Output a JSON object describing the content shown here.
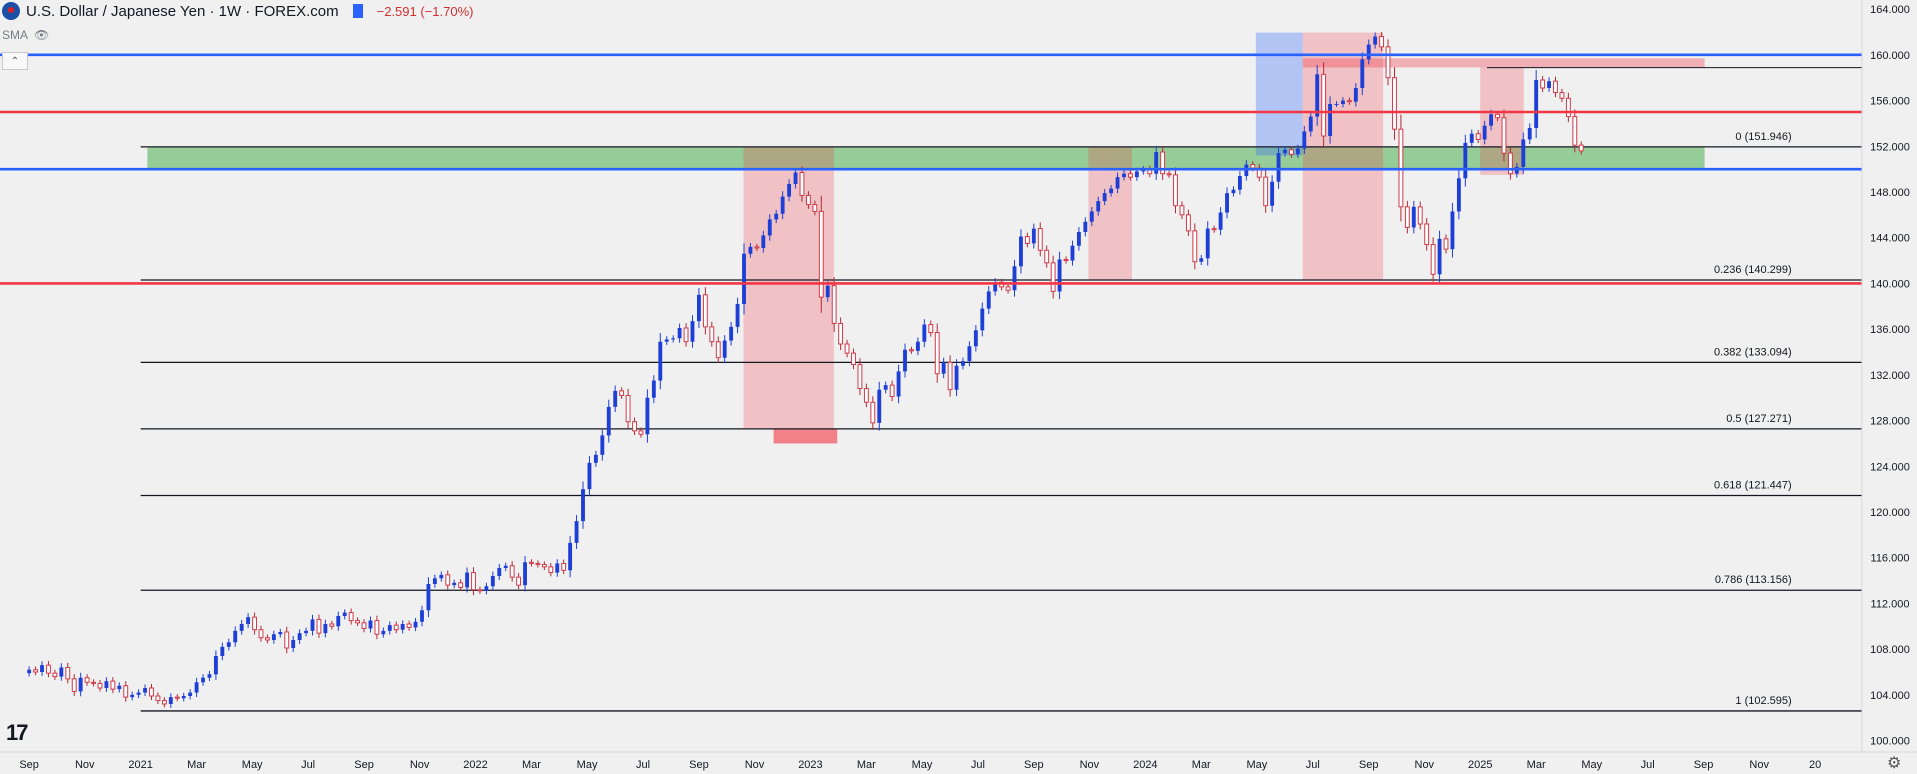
{
  "header": {
    "title": "U.S. Dollar / Japanese Yen · 1W · FOREX.com",
    "change": "−2.591 (−1.70%)",
    "indicator": "SMA"
  },
  "chart_data": {
    "type": "candlestick",
    "title": "U.S. Dollar / Japanese Yen · 1W · FOREX.com",
    "ylim": [
      99.0,
      164.8
    ],
    "y_ticks": [
      100,
      104,
      108,
      112,
      116,
      120,
      124,
      128,
      132,
      136,
      140,
      144,
      148,
      152,
      156,
      160,
      164
    ],
    "x_labels": [
      {
        "label": "Sep",
        "t": 2020.667
      },
      {
        "label": "Nov",
        "t": 2020.833
      },
      {
        "label": "2021",
        "t": 2021.0
      },
      {
        "label": "Mar",
        "t": 2021.167
      },
      {
        "label": "May",
        "t": 2021.333
      },
      {
        "label": "Jul",
        "t": 2021.5
      },
      {
        "label": "Sep",
        "t": 2021.667
      },
      {
        "label": "Nov",
        "t": 2021.833
      },
      {
        "label": "2022",
        "t": 2022.0
      },
      {
        "label": "Mar",
        "t": 2022.167
      },
      {
        "label": "May",
        "t": 2022.333
      },
      {
        "label": "Jul",
        "t": 2022.5
      },
      {
        "label": "Sep",
        "t": 2022.667
      },
      {
        "label": "Nov",
        "t": 2022.833
      },
      {
        "label": "2023",
        "t": 2023.0
      },
      {
        "label": "Mar",
        "t": 2023.167
      },
      {
        "label": "May",
        "t": 2023.333
      },
      {
        "label": "Jul",
        "t": 2023.5
      },
      {
        "label": "Sep",
        "t": 2023.667
      },
      {
        "label": "Nov",
        "t": 2023.833
      },
      {
        "label": "2024",
        "t": 2024.0
      },
      {
        "label": "Mar",
        "t": 2024.167
      },
      {
        "label": "May",
        "t": 2024.333
      },
      {
        "label": "Jul",
        "t": 2024.5
      },
      {
        "label": "Sep",
        "t": 2024.667
      },
      {
        "label": "Nov",
        "t": 2024.833
      },
      {
        "label": "2025",
        "t": 2025.0
      },
      {
        "label": "Mar",
        "t": 2025.167
      },
      {
        "label": "May",
        "t": 2025.333
      },
      {
        "label": "Jul",
        "t": 2025.5
      },
      {
        "label": "Sep",
        "t": 2025.667
      },
      {
        "label": "Nov",
        "t": 2025.833
      },
      {
        "label": "20",
        "t": 2026.0
      }
    ],
    "price_lines": [
      {
        "price": 160.0,
        "label": "160.000",
        "color": "#2962ff"
      },
      {
        "price": 155.0,
        "label": "155.000",
        "color": "#f23645"
      },
      {
        "price": 150.0,
        "label": "150.000",
        "color": "#2962ff"
      },
      {
        "price": 140.0,
        "label": "140.000",
        "color": "#f23645"
      }
    ],
    "last_price": {
      "price": 158.882,
      "label": "158.882",
      "color": "#131722"
    },
    "fib_levels": [
      {
        "price": 151.946,
        "label": "0 (151.946)"
      },
      {
        "price": 140.299,
        "label": "0.236 (140.299)"
      },
      {
        "price": 133.094,
        "label": "0.382 (133.094)"
      },
      {
        "price": 127.271,
        "label": "0.5 (127.271)"
      },
      {
        "price": 121.447,
        "label": "0.618 (121.447)"
      },
      {
        "price": 113.156,
        "label": "0.786 (113.156)"
      },
      {
        "price": 102.595,
        "label": "1 (102.595)"
      }
    ],
    "zones": [
      {
        "type": "support-resistance",
        "t1": 2021.02,
        "t2": 2025.67,
        "p1": 150.0,
        "p2": 151.95,
        "color": "#4caf50"
      },
      {
        "type": "pullback",
        "t1": 2022.8,
        "t2": 2023.07,
        "p1": 127.27,
        "p2": 151.95,
        "color": "#f23645"
      },
      {
        "type": "pullback",
        "t1": 2023.83,
        "t2": 2023.96,
        "p1": 140.3,
        "p2": 151.95,
        "color": "#f23645"
      },
      {
        "type": "pullback",
        "t1": 2024.47,
        "t2": 2024.71,
        "p1": 140.3,
        "p2": 161.95,
        "color": "#f23645"
      },
      {
        "type": "pullback",
        "t1": 2025.0,
        "t2": 2025.13,
        "p1": 149.5,
        "p2": 158.9,
        "color": "#f23645"
      },
      {
        "type": "rally",
        "t1": 2024.33,
        "t2": 2024.47,
        "p1": 151.2,
        "p2": 161.95,
        "color": "#2962ff"
      }
    ],
    "series": [
      {
        "name": "USD/JPY",
        "t_start": 2020.667,
        "step": 0.019231,
        "closes": [
          106.2,
          106.0,
          106.6,
          105.9,
          105.6,
          106.4,
          105.4,
          104.3,
          105.5,
          105.1,
          105.0,
          104.6,
          105.2,
          104.5,
          104.8,
          103.8,
          104.0,
          104.2,
          104.6,
          103.9,
          103.5,
          103.2,
          103.8,
          103.7,
          103.9,
          104.2,
          105.1,
          105.5,
          105.8,
          107.4,
          108.2,
          108.6,
          109.6,
          110.2,
          110.8,
          109.7,
          109.0,
          108.8,
          109.3,
          109.5,
          108.1,
          108.8,
          109.4,
          109.6,
          110.6,
          109.4,
          110.2,
          110.0,
          110.9,
          111.2,
          110.5,
          110.3,
          109.8,
          110.5,
          109.3,
          109.6,
          110.1,
          109.7,
          110.2,
          109.9,
          110.4,
          111.4,
          113.7,
          114.2,
          114.5,
          113.6,
          113.8,
          113.4,
          114.7,
          113.2,
          113.1,
          113.5,
          114.4,
          115.1,
          115.3,
          114.3,
          113.6,
          115.6,
          115.5,
          115.4,
          115.2,
          114.7,
          115.5,
          114.9,
          117.3,
          119.2,
          122.0,
          124.3,
          125.0,
          126.7,
          129.2,
          130.6,
          130.2,
          127.9,
          127.1,
          126.8,
          130.0,
          131.5,
          134.9,
          135.1,
          135.2,
          136.1,
          134.9,
          136.7,
          139.0,
          136.2,
          134.9,
          133.5,
          135.0,
          136.2,
          138.2,
          142.6,
          143.2,
          143.1,
          144.2,
          145.6,
          146.1,
          147.6,
          148.7,
          149.7,
          147.7,
          146.9,
          146.3,
          138.8,
          139.8,
          136.5,
          134.7,
          133.9,
          132.9,
          130.8,
          129.6,
          127.8,
          130.7,
          131.1,
          130.1,
          132.3,
          134.2,
          134.1,
          134.9,
          136.4,
          135.7,
          132.1,
          133.1,
          130.7,
          132.8,
          133.2,
          134.5,
          135.9,
          137.8,
          139.3,
          140.1,
          139.7,
          139.4,
          141.5,
          144.1,
          143.5,
          144.8,
          142.9,
          141.8,
          139.3,
          142.1,
          142.0,
          143.3,
          144.5,
          145.4,
          146.3,
          147.2,
          147.9,
          148.3,
          149.3,
          149.6,
          149.3,
          149.8,
          150.0,
          149.6,
          151.5,
          149.6,
          149.5,
          146.8,
          146.0,
          144.6,
          141.9,
          142.2,
          144.8,
          144.7,
          146.2,
          147.9,
          148.2,
          149.4,
          150.4,
          150.1,
          149.3,
          146.8,
          148.9,
          151.4,
          151.7,
          151.3,
          151.8,
          153.3,
          154.6,
          158.3,
          152.9,
          155.7,
          155.7,
          156.0,
          155.9,
          157.1,
          159.6,
          160.9,
          161.6,
          160.7,
          158.0,
          153.5,
          146.7,
          144.9,
          146.7,
          145.2,
          143.4,
          140.8,
          143.9,
          143.0,
          146.3,
          149.2,
          152.3,
          153.1,
          152.6,
          153.8,
          154.8,
          154.5,
          151.4,
          149.6,
          150.2,
          152.6,
          153.6,
          157.8,
          157.1,
          157.7,
          156.7,
          156.2,
          154.6,
          152.1,
          151.6
        ]
      }
    ]
  }
}
